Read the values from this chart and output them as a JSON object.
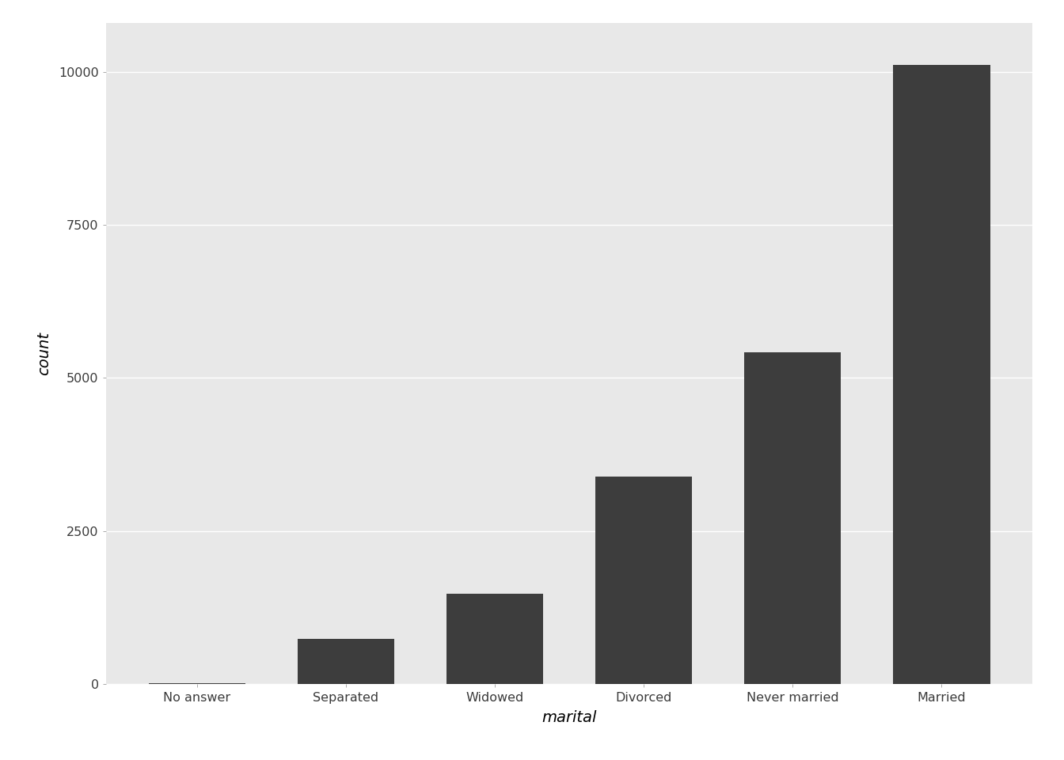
{
  "categories": [
    "No answer",
    "Separated",
    "Widowed",
    "Divorced",
    "Never married",
    "Married"
  ],
  "values": [
    17,
    743,
    1478,
    3384,
    5416,
    10117
  ],
  "bar_color": "#3d3d3d",
  "fig_background_color": "#ffffff",
  "panel_background": "#e8e8e8",
  "grid_color": "#ffffff",
  "title": "",
  "xlabel": "marital",
  "ylabel": "count",
  "ylim": [
    0,
    10800
  ],
  "yticks": [
    0,
    2500,
    5000,
    7500,
    10000
  ],
  "xlabel_fontsize": 14,
  "ylabel_fontsize": 14,
  "tick_fontsize": 11.5,
  "bar_width": 0.65
}
